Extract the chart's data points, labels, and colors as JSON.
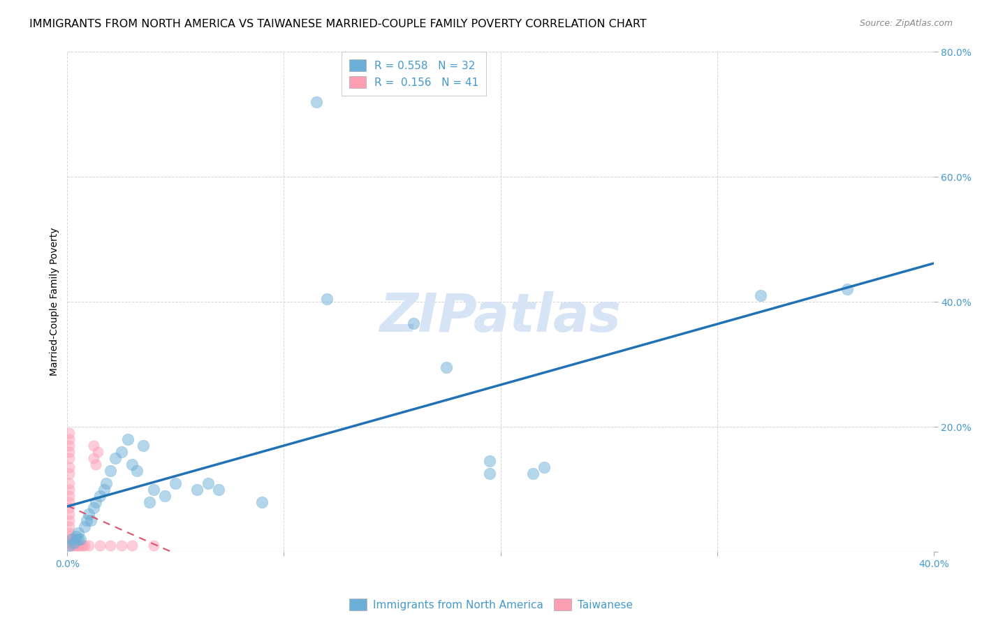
{
  "title": "IMMIGRANTS FROM NORTH AMERICA VS TAIWANESE MARRIED-COUPLE FAMILY POVERTY CORRELATION CHART",
  "source": "Source: ZipAtlas.com",
  "ylabel": "Married-Couple Family Poverty",
  "xlim": [
    0.0,
    0.4
  ],
  "ylim": [
    0.0,
    0.8
  ],
  "xticks": [
    0.0,
    0.1,
    0.2,
    0.3,
    0.4
  ],
  "yticks": [
    0.0,
    0.2,
    0.4,
    0.6,
    0.8
  ],
  "blue_color": "#6baed6",
  "blue_line_color": "#2171b5",
  "pink_color": "#fc9fb5",
  "pink_line_color": "#d9536a",
  "watermark_color": "#d6e4f5",
  "grid_color": "#cccccc",
  "tick_label_color": "#4499cc",
  "background_color": "#ffffff",
  "blue_scatter": [
    [
      0.001,
      0.01
    ],
    [
      0.002,
      0.02
    ],
    [
      0.003,
      0.015
    ],
    [
      0.004,
      0.025
    ],
    [
      0.005,
      0.02
    ],
    [
      0.005,
      0.03
    ],
    [
      0.006,
      0.02
    ],
    [
      0.008,
      0.04
    ],
    [
      0.009,
      0.05
    ],
    [
      0.01,
      0.06
    ],
    [
      0.011,
      0.05
    ],
    [
      0.012,
      0.07
    ],
    [
      0.013,
      0.08
    ],
    [
      0.015,
      0.09
    ],
    [
      0.017,
      0.1
    ],
    [
      0.018,
      0.11
    ],
    [
      0.02,
      0.13
    ],
    [
      0.022,
      0.15
    ],
    [
      0.025,
      0.16
    ],
    [
      0.028,
      0.18
    ],
    [
      0.03,
      0.14
    ],
    [
      0.032,
      0.13
    ],
    [
      0.035,
      0.17
    ],
    [
      0.038,
      0.08
    ],
    [
      0.04,
      0.1
    ],
    [
      0.045,
      0.09
    ],
    [
      0.05,
      0.11
    ],
    [
      0.06,
      0.1
    ],
    [
      0.065,
      0.11
    ],
    [
      0.07,
      0.1
    ],
    [
      0.09,
      0.08
    ],
    [
      0.12,
      0.405
    ],
    [
      0.16,
      0.365
    ],
    [
      0.175,
      0.295
    ],
    [
      0.195,
      0.145
    ],
    [
      0.195,
      0.125
    ],
    [
      0.215,
      0.125
    ],
    [
      0.22,
      0.135
    ],
    [
      0.32,
      0.41
    ],
    [
      0.36,
      0.42
    ],
    [
      0.115,
      0.72
    ]
  ],
  "pink_scatter": [
    [
      0.001,
      0.01
    ],
    [
      0.001,
      0.015
    ],
    [
      0.001,
      0.02
    ],
    [
      0.001,
      0.025
    ],
    [
      0.001,
      0.03
    ],
    [
      0.001,
      0.04
    ],
    [
      0.001,
      0.05
    ],
    [
      0.001,
      0.06
    ],
    [
      0.001,
      0.07
    ],
    [
      0.001,
      0.08
    ],
    [
      0.001,
      0.09
    ],
    [
      0.001,
      0.1
    ],
    [
      0.001,
      0.11
    ],
    [
      0.001,
      0.125
    ],
    [
      0.001,
      0.135
    ],
    [
      0.001,
      0.15
    ],
    [
      0.001,
      0.16
    ],
    [
      0.001,
      0.17
    ],
    [
      0.001,
      0.18
    ],
    [
      0.001,
      0.19
    ],
    [
      0.002,
      0.01
    ],
    [
      0.002,
      0.015
    ],
    [
      0.002,
      0.02
    ],
    [
      0.003,
      0.01
    ],
    [
      0.003,
      0.015
    ],
    [
      0.004,
      0.01
    ],
    [
      0.004,
      0.02
    ],
    [
      0.005,
      0.01
    ],
    [
      0.006,
      0.01
    ],
    [
      0.007,
      0.01
    ],
    [
      0.008,
      0.01
    ],
    [
      0.01,
      0.01
    ],
    [
      0.012,
      0.15
    ],
    [
      0.012,
      0.17
    ],
    [
      0.013,
      0.14
    ],
    [
      0.014,
      0.16
    ],
    [
      0.015,
      0.01
    ],
    [
      0.02,
      0.01
    ],
    [
      0.025,
      0.01
    ],
    [
      0.03,
      0.01
    ],
    [
      0.04,
      0.01
    ]
  ],
  "title_fontsize": 11.5,
  "source_fontsize": 9,
  "axis_label_fontsize": 10,
  "tick_fontsize": 10,
  "legend_fontsize": 11,
  "watermark_fontsize": 55
}
